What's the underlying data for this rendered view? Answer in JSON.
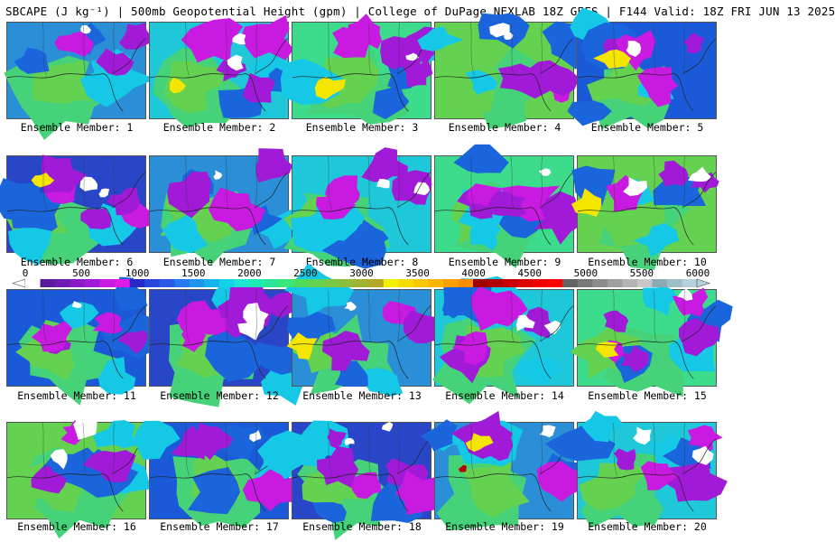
{
  "title": "SBCAPE (J kg⁻¹) | 500mb Geopotential Height (gpm) | College of DuPage NEXLAB 18Z GEFS | F144 Valid: 18Z FRI JUN 13 2025",
  "members": [
    {
      "label": "Ensemble Member: 1"
    },
    {
      "label": "Ensemble Member: 2"
    },
    {
      "label": "Ensemble Member: 3"
    },
    {
      "label": "Ensemble Member: 4"
    },
    {
      "label": "Ensemble Member: 5"
    },
    {
      "label": "Ensemble Member: 6"
    },
    {
      "label": "Ensemble Member: 7"
    },
    {
      "label": "Ensemble Member: 8"
    },
    {
      "label": "Ensemble Member: 9"
    },
    {
      "label": "Ensemble Member: 10"
    },
    {
      "label": "Ensemble Member: 11"
    },
    {
      "label": "Ensemble Member: 12"
    },
    {
      "label": "Ensemble Member: 13"
    },
    {
      "label": "Ensemble Member: 14"
    },
    {
      "label": "Ensemble Member: 15"
    },
    {
      "label": "Ensemble Member: 16"
    },
    {
      "label": "Ensemble Member: 17"
    },
    {
      "label": "Ensemble Member: 18"
    },
    {
      "label": "Ensemble Member: 19"
    },
    {
      "label": "Ensemble Member: 20"
    }
  ],
  "colorbar": {
    "ticks": [
      "0",
      "500",
      "1000",
      "1500",
      "2000",
      "2500",
      "3000",
      "3500",
      "4000",
      "4500",
      "5000",
      "5500",
      "6000"
    ],
    "colors": [
      "#ffffff",
      "#5a1a9c",
      "#6e1ab4",
      "#8a1ac8",
      "#a01ad8",
      "#c81ae0",
      "#e01ae6",
      "#2828c8",
      "#2846dc",
      "#285ae6",
      "#2878f0",
      "#1e96f0",
      "#14b4f0",
      "#14d2e6",
      "#1ee6d2",
      "#1eeab4",
      "#28e696",
      "#3ce678",
      "#50dc5a",
      "#64d250",
      "#78c846",
      "#8cbe3c",
      "#a0b432",
      "#b4aa28",
      "#f0f000",
      "#f5dc00",
      "#fac800",
      "#ffb400",
      "#ffa000",
      "#ff8c00",
      "#a00000",
      "#b40000",
      "#c80000",
      "#dc0000",
      "#f00000",
      "#ff0000",
      "#646464",
      "#787878",
      "#8c8c8c",
      "#a0a0a0",
      "#b4b4b4",
      "#c8c8c8",
      "#8caab4",
      "#a0bec8",
      "#b4d2dc"
    ]
  }
}
